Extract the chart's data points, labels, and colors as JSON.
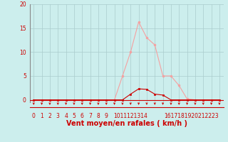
{
  "xlabel": "Vent moyen/en rafales ( km/h )",
  "background_color": "#cceeed",
  "grid_color": "#aacccc",
  "line_color_rafales": "#f5a0a0",
  "line_color_moyen": "#cc0000",
  "marker_color_rafales": "#f5a0a0",
  "marker_color_moyen": "#cc0000",
  "axis_color": "#888888",
  "red_color": "#cc0000",
  "x_values": [
    0,
    1,
    2,
    3,
    4,
    5,
    6,
    7,
    8,
    9,
    10,
    11,
    12,
    13,
    14,
    15,
    16,
    17,
    18,
    19,
    20,
    21,
    22,
    23
  ],
  "y_rafales": [
    0,
    0,
    0,
    0,
    0,
    0,
    0,
    0,
    0,
    0,
    0,
    5,
    10,
    16.3,
    13,
    11.5,
    5,
    5,
    3,
    0.2,
    0,
    0,
    0,
    0
  ],
  "y_moyen": [
    0,
    0,
    0,
    0,
    0,
    0,
    0,
    0,
    0,
    0,
    0,
    0,
    1.2,
    2.3,
    2.2,
    1.2,
    1,
    0,
    0,
    0,
    0,
    0,
    0,
    0
  ],
  "xlim": [
    -0.5,
    23.5
  ],
  "ylim": [
    -0.5,
    20
  ],
  "yticks": [
    0,
    5,
    10,
    15,
    20
  ],
  "xtick_labels": [
    "0",
    "1",
    "2",
    "3",
    "4",
    "5",
    "6",
    "7",
    "8",
    "9",
    "1011121314",
    "",
    "",
    "",
    "",
    "1617181920212223",
    "",
    "",
    "",
    "",
    "",
    "",
    ""
  ],
  "tick_fontsize": 5.5,
  "label_fontsize": 7
}
